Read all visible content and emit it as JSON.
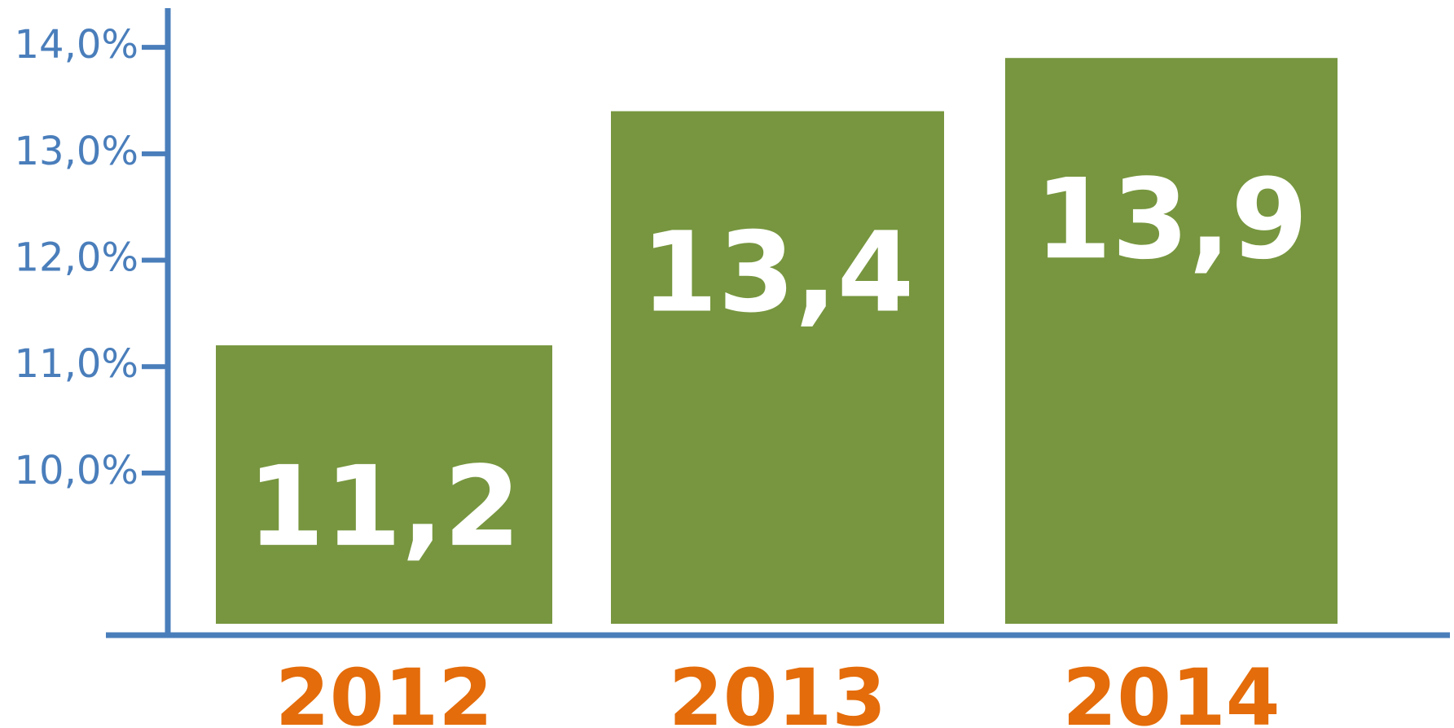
{
  "chart_data": {
    "type": "bar",
    "categories": [
      "2012",
      "2013",
      "2014"
    ],
    "values": [
      11.2,
      13.4,
      13.9
    ],
    "value_labels": [
      "11,2",
      "13,4",
      "13,9"
    ],
    "y_ticks": [
      10.0,
      11.0,
      12.0,
      13.0,
      14.0
    ],
    "y_tick_labels": [
      "10,0%",
      "11,0%",
      "12,0%",
      "13,0%",
      "14,0%"
    ],
    "ylim": [
      8.4,
      14.2
    ],
    "grid": false,
    "legend": "none",
    "title": "",
    "xlabel": "",
    "ylabel": ""
  },
  "colors": {
    "bar": "#77963f",
    "axis": "#4a7ebb",
    "category_label": "#e46c0a",
    "value_label": "#ffffff"
  }
}
